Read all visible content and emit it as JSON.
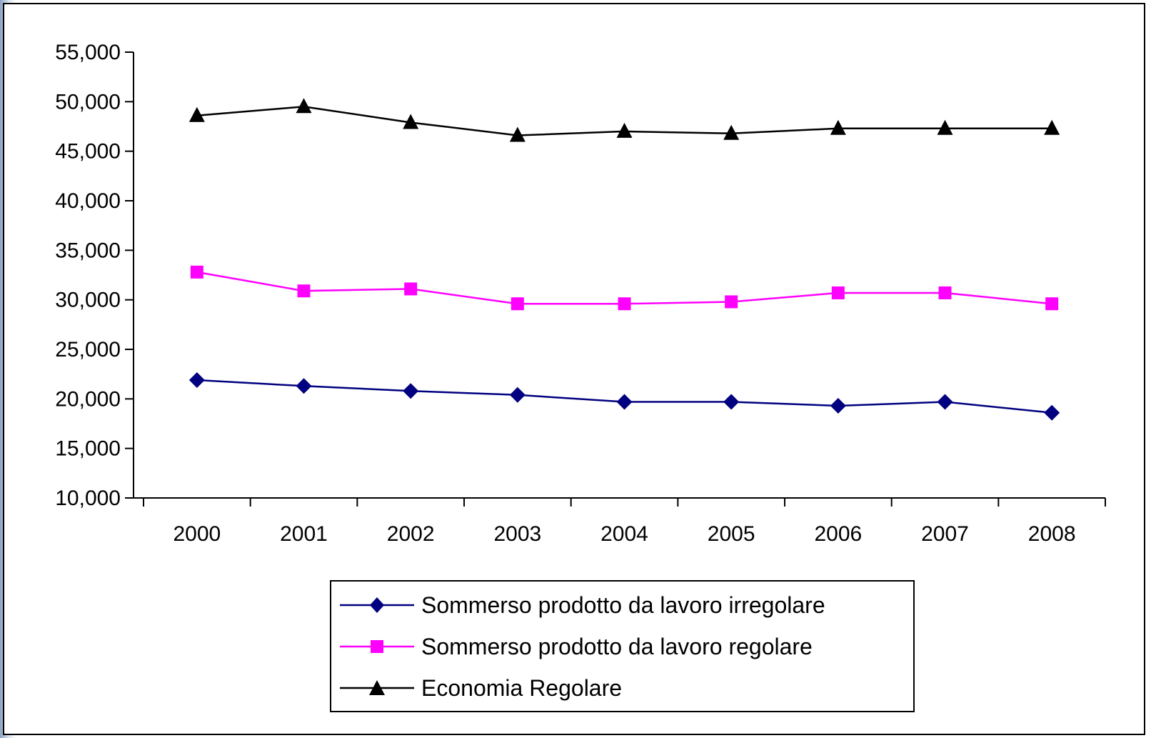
{
  "chart_data": {
    "type": "line",
    "title": "",
    "xlabel": "",
    "ylabel": "",
    "categories": [
      "2000",
      "2001",
      "2002",
      "2003",
      "2004",
      "2005",
      "2006",
      "2007",
      "2008"
    ],
    "ylim": [
      10000,
      55000
    ],
    "yticks": [
      10000,
      15000,
      20000,
      25000,
      30000,
      35000,
      40000,
      45000,
      50000,
      55000
    ],
    "ytick_labels": [
      "10,000",
      "15,000",
      "20,000",
      "25,000",
      "30,000",
      "35,000",
      "40,000",
      "45,000",
      "50,000",
      "55,000"
    ],
    "grid": false,
    "legend_position": "bottom",
    "series": [
      {
        "name": "Sommerso prodotto da lavoro irregolare",
        "color": "#000080",
        "marker": "diamond",
        "values": [
          21900,
          21300,
          20800,
          20400,
          19700,
          19700,
          19300,
          19700,
          18600
        ]
      },
      {
        "name": "Sommerso prodotto da lavoro regolare",
        "color": "#ff00ff",
        "marker": "square",
        "values": [
          32800,
          30900,
          31100,
          29600,
          29600,
          29800,
          30700,
          30700,
          29600
        ]
      },
      {
        "name": "Economia Regolare",
        "color": "#000000",
        "marker": "triangle",
        "values": [
          48600,
          49500,
          47900,
          46600,
          47000,
          46800,
          47300,
          47300,
          47300
        ]
      }
    ]
  }
}
